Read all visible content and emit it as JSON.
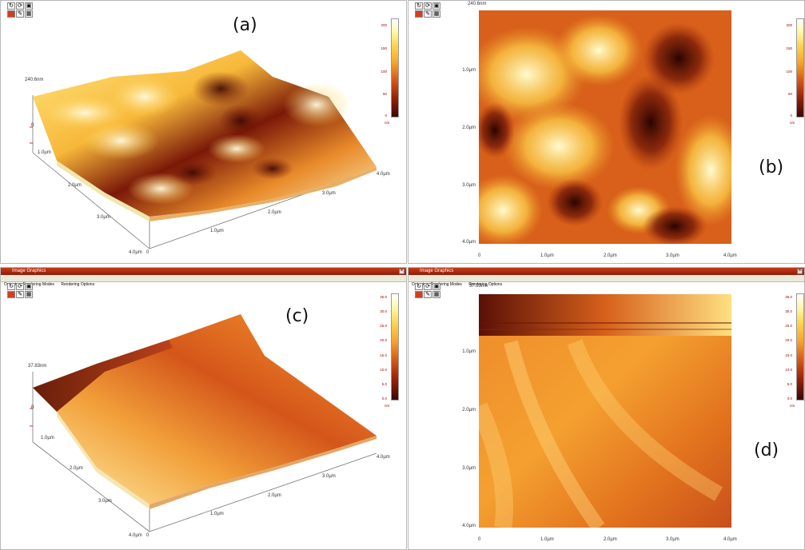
{
  "panels": {
    "a": {
      "label": "(a)",
      "height_label": "240.6nm",
      "ax_y": [
        "0",
        "1.0µm",
        "2.0µm",
        "3.0µm",
        "4.0µm"
      ],
      "ax_x": [
        "0",
        "1.0µm",
        "2.0µm",
        "3.0µm",
        "4.0µm"
      ],
      "scale_ticks": [
        "200",
        "150",
        "100",
        "50",
        "0"
      ],
      "scale_unit": "nm"
    },
    "b": {
      "label": "(b)",
      "height_label": "240.6nm",
      "ax_y": [
        "0",
        "1.0µm",
        "2.0µm",
        "3.0µm",
        "4.0µm"
      ],
      "ax_x": [
        "0",
        "1.0µm",
        "2.0µm",
        "3.0µm",
        "4.0µm"
      ],
      "scale_ticks": [
        "200",
        "150",
        "100",
        "50",
        "0"
      ],
      "scale_unit": "nm"
    },
    "c": {
      "window_title": "Image Graphics",
      "menu": [
        "Output",
        "Rendering Modes",
        "Rendering Options"
      ],
      "label": "(c)",
      "height_label": "37.83nm",
      "ax_y": [
        "0",
        "1.0µm",
        "2.0µm",
        "3.0µm",
        "4.0µm"
      ],
      "ax_x": [
        "0",
        "1.0µm",
        "2.0µm",
        "3.0µm",
        "4.0µm"
      ],
      "scale_ticks": [
        "35.0",
        "30.0",
        "25.0",
        "20.0",
        "15.0",
        "10.0",
        "5.0",
        "0.0"
      ],
      "scale_unit": "nm"
    },
    "d": {
      "window_title": "Image Graphics",
      "menu": [
        "Output",
        "Rendering Modes",
        "Rendering Options"
      ],
      "label": "(d)",
      "height_label": "37.83nm",
      "ax_y": [
        "0",
        "1.0µm",
        "2.0µm",
        "3.0µm",
        "4.0µm"
      ],
      "ax_x": [
        "0",
        "1.0µm",
        "2.0µm",
        "3.0µm",
        "4.0µm"
      ],
      "scale_ticks": [
        "35.0",
        "30.0",
        "25.0",
        "20.0",
        "15.0",
        "10.0",
        "5.0",
        "0.0"
      ],
      "scale_unit": "nm"
    }
  },
  "toolbar_icons": [
    "rotate-icon",
    "refresh-icon",
    "export-icon",
    "palette-icon",
    "pen-icon",
    "grid-icon"
  ],
  "colors": {
    "high": "#fff6a0",
    "mid": "#e06a1c",
    "low": "#3a0702",
    "titlebar": "#b02a0e",
    "scale_text": "#a00000"
  }
}
